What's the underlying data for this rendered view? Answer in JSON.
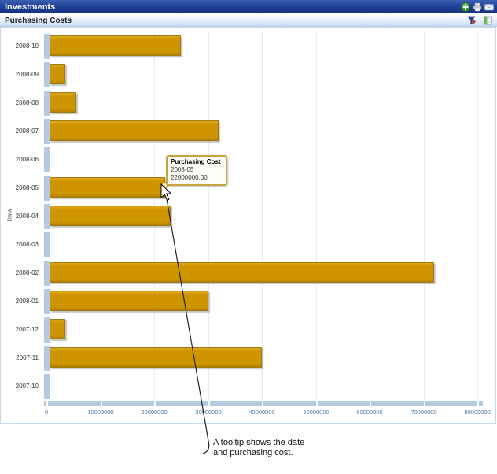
{
  "window": {
    "title": "Investments"
  },
  "titlebar_icons": [
    {
      "name": "add"
    },
    {
      "name": "print"
    },
    {
      "name": "mail"
    }
  ],
  "toolbar": {
    "title": "Purchasing Costs",
    "icons": [
      {
        "name": "filter"
      },
      {
        "name": "export"
      }
    ]
  },
  "chart_data": {
    "type": "bar",
    "orientation": "horizontal",
    "title": "",
    "xlabel": "",
    "ylabel": "Data",
    "categories": [
      "2008-10",
      "2008-09",
      "2008-08",
      "2008-07",
      "2008-06",
      "2008-05",
      "2008-04",
      "2008-03",
      "2008-02",
      "2008-01",
      "2007-12",
      "2007-11",
      "2007-10"
    ],
    "values": [
      25000000,
      3500000,
      5500000,
      32000000,
      0,
      22000000,
      23000000,
      0,
      72000000,
      30000000,
      3500000,
      40000000,
      0
    ],
    "x_ticks": [
      "0",
      "10000000",
      "20000000",
      "30000000",
      "40000000",
      "50000000",
      "60000000",
      "70000000",
      "80000000"
    ],
    "xlim": [
      0,
      80000000
    ],
    "grid": "vertical",
    "legend": "none",
    "bar_color": "#ce9500",
    "bar_color_dark": "#b48200",
    "bar_color_light": "#dfa81c",
    "axis_strip_color": "#b5c9df",
    "tick_label_color": "#4f7ba8"
  },
  "tooltip": {
    "title": "Purchasing Cost",
    "date": "2008-05",
    "value": "22000000.00"
  },
  "annotation": {
    "text": "A tooltip shows the date and purchasing cost."
  },
  "colors": {
    "titlebar_blue": "#21419a",
    "toolbar_blue": "#c9dcf3",
    "panel_border": "#c3d8ef",
    "tooltip_border": "#c8a43c"
  }
}
